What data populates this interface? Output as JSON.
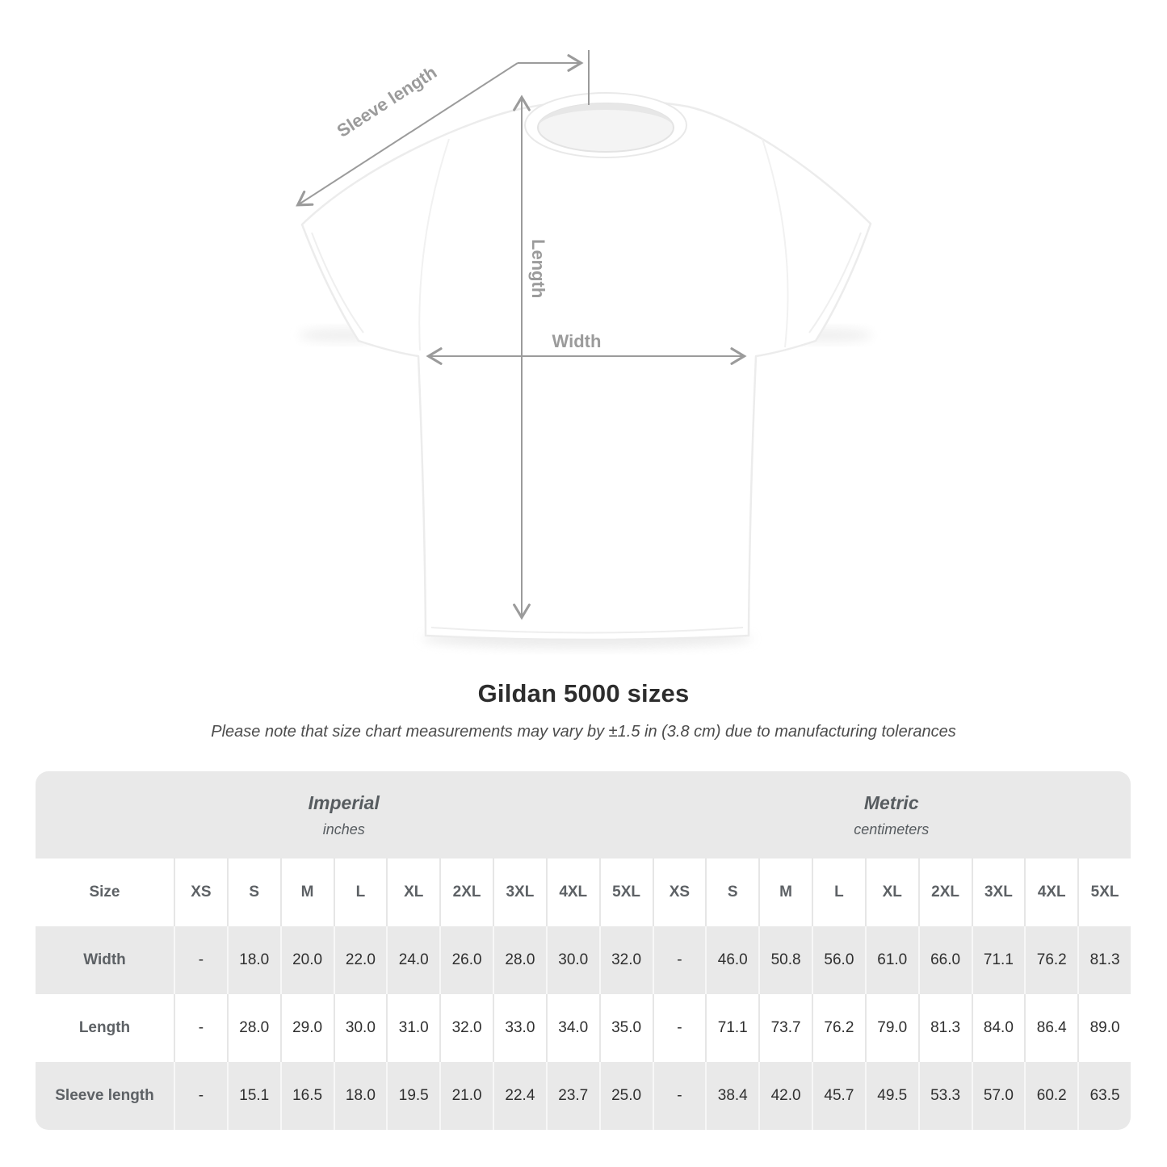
{
  "title": "Gildan 5000 sizes",
  "subtitle": "Please note that size chart measurements may vary by ±1.5 in (3.8 cm) due to manufacturing tolerances",
  "diagram": {
    "sleeve_length_label": "Sleeve length",
    "length_label": "Length",
    "width_label": "Width",
    "line_color": "#9b9b9b"
  },
  "chart_data": {
    "type": "table",
    "title": "Gildan 5000 sizes",
    "corner_label": "Size",
    "sections": [
      {
        "name": "Imperial",
        "unit": "inches"
      },
      {
        "name": "Metric",
        "unit": "centimeters"
      }
    ],
    "sizes": [
      "XS",
      "S",
      "M",
      "L",
      "XL",
      "2XL",
      "3XL",
      "4XL",
      "5XL"
    ],
    "rows": [
      {
        "label": "Width",
        "imperial": [
          "-",
          "18.0",
          "20.0",
          "22.0",
          "24.0",
          "26.0",
          "28.0",
          "30.0",
          "32.0"
        ],
        "metric": [
          "-",
          "46.0",
          "50.8",
          "56.0",
          "61.0",
          "66.0",
          "71.1",
          "76.2",
          "81.3"
        ]
      },
      {
        "label": "Length",
        "imperial": [
          "-",
          "28.0",
          "29.0",
          "30.0",
          "31.0",
          "32.0",
          "33.0",
          "34.0",
          "35.0"
        ],
        "metric": [
          "-",
          "71.1",
          "73.7",
          "76.2",
          "79.0",
          "81.3",
          "84.0",
          "86.4",
          "89.0"
        ]
      },
      {
        "label": "Sleeve length",
        "imperial": [
          "-",
          "15.1",
          "16.5",
          "18.0",
          "19.5",
          "21.0",
          "22.4",
          "23.7",
          "25.0"
        ],
        "metric": [
          "-",
          "38.4",
          "42.0",
          "45.7",
          "49.5",
          "53.3",
          "57.0",
          "60.2",
          "63.5"
        ]
      }
    ],
    "stripe_colors": {
      "shaded_row": "#e9e9e9",
      "plain_row": "#ffffff"
    },
    "note": "measurements tolerance ±1.5 in (3.8 cm)"
  }
}
